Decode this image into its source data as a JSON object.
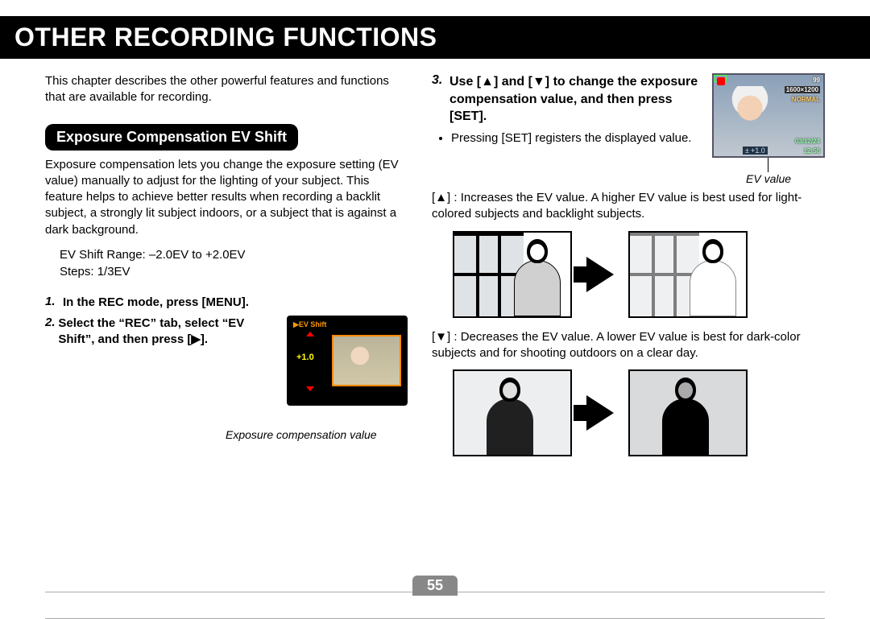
{
  "page": {
    "title": "OTHER RECORDING FUNCTIONS",
    "number": "55"
  },
  "left": {
    "intro": "This chapter describes the other powerful features and functions that are available for recording.",
    "section_title": "Exposure Compensation EV Shift",
    "section_body": "Exposure compensation lets you change the exposure setting (EV value) manually to adjust for the lighting of your subject. This feature helps to achieve better results when recording a backlit subject, a strongly lit subject indoors, or a subject that is against a dark background.",
    "range_line": "EV Shift Range: –2.0EV to +2.0EV",
    "steps_line": "Steps: 1/3EV",
    "step1_num": "1.",
    "step1_text": "In the REC mode, press [MENU].",
    "step2_num": "2.",
    "step2_text": "Select the “REC” tab, select “EV Shift”, and then press [▶].",
    "lcd": {
      "tab": "▶EV Shift",
      "value": "+1.0"
    },
    "caption": "Exposure compensation value"
  },
  "right": {
    "step3_num": "3.",
    "step3_text": "Use [▲] and [▼] to change the exposure compensation value, and then press [SET].",
    "bullet": "Pressing [SET] registers the displayed value.",
    "osd": {
      "count": "99",
      "res": "1600×1200",
      "normal": "NORMAL",
      "date": "03/12/24",
      "time": "12:58",
      "ev_icon": "±",
      "ev_val": "+1.0"
    },
    "caption": "EV value",
    "up_sym": "[▲] :",
    "up_text": "Increases the EV value. A higher EV value is best used for light-colored subjects and backlight subjects.",
    "down_sym": "[▼] :",
    "down_text": "Decreases the EV value. A lower EV value is best for dark-color subjects and for shooting outdoors on a clear day."
  }
}
